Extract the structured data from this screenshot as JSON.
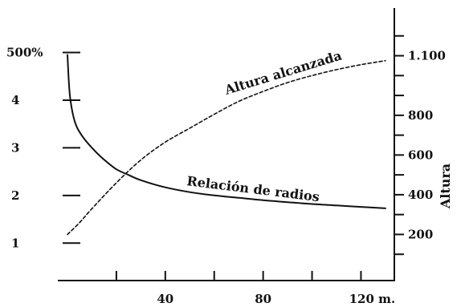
{
  "chart_data": {
    "type": "line",
    "x": {
      "ticks": [
        40,
        80,
        120
      ],
      "tick_labels": [
        "40",
        "80",
        "120 m."
      ],
      "range": [
        0,
        132
      ]
    },
    "y_left": {
      "ticks": [
        1,
        2,
        3,
        4,
        5
      ],
      "tick_labels": [
        "1",
        "2",
        "3",
        "4",
        "500%"
      ],
      "range": [
        0.5,
        5.8
      ]
    },
    "y_right": {
      "label": "Altura",
      "ticks": [
        200,
        400,
        600,
        800,
        1100
      ],
      "tick_labels": [
        "200",
        "400",
        "600",
        "800",
        "1.100"
      ],
      "range": [
        0,
        1300
      ]
    },
    "series": [
      {
        "name": "Relación de radios",
        "axis": "left",
        "style": "solid",
        "x": [
          0,
          1,
          3,
          6,
          10,
          15,
          20,
          25,
          30,
          40,
          50,
          60,
          70,
          80,
          90,
          100,
          110,
          120,
          130
        ],
        "values": [
          4.95,
          4.1,
          3.55,
          3.25,
          3.0,
          2.75,
          2.55,
          2.43,
          2.32,
          2.17,
          2.07,
          2.0,
          1.95,
          1.9,
          1.86,
          1.82,
          1.79,
          1.76,
          1.73
        ]
      },
      {
        "name": "Altura alcanzada",
        "axis": "right",
        "style": "dashed",
        "x": [
          0,
          5,
          10,
          20,
          30,
          40,
          50,
          60,
          70,
          80,
          90,
          100,
          110,
          120,
          130
        ],
        "values": [
          200,
          260,
          330,
          460,
          575,
          665,
          735,
          805,
          870,
          920,
          965,
          1000,
          1030,
          1055,
          1075
        ]
      }
    ]
  }
}
